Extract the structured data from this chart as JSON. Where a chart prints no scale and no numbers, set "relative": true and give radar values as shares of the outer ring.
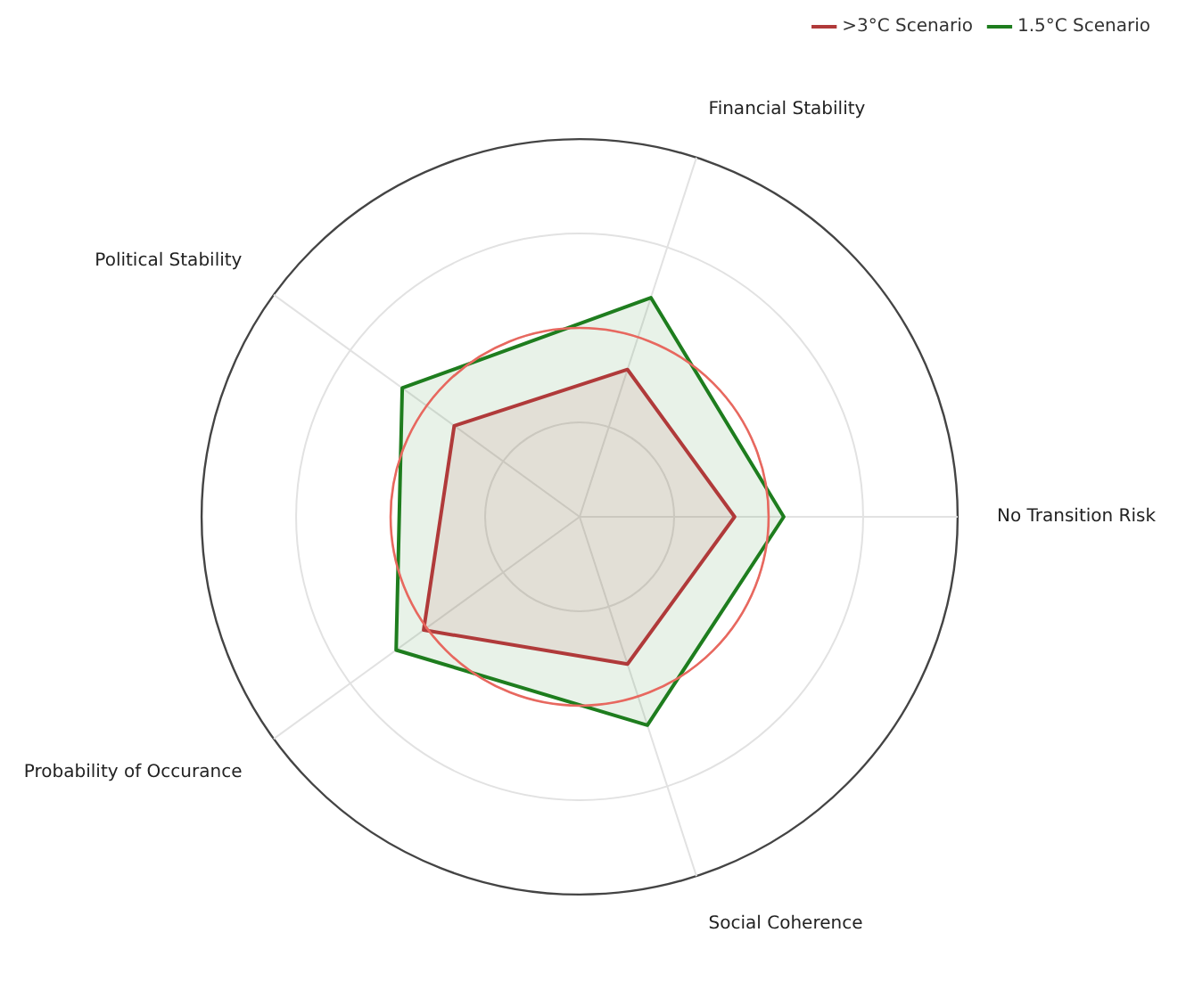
{
  "chart_data": {
    "type": "radar",
    "relative": true,
    "grid": true,
    "legend": "top right",
    "marker": "none",
    "categories": [
      "Financial Stability",
      "No Transition Risk",
      "Social Coherence",
      "Probability of Occurance",
      "Political Stability"
    ],
    "series": [
      {
        "name": ">3°C Scenario",
        "color": "#b03a3a",
        "values": [
          0.41,
          0.41,
          0.41,
          0.51,
          0.41
        ]
      },
      {
        "name": "1.5°C Scenario",
        "color": "#1e7d1e",
        "values": [
          0.61,
          0.54,
          0.58,
          0.6,
          0.58
        ]
      }
    ]
  }
}
